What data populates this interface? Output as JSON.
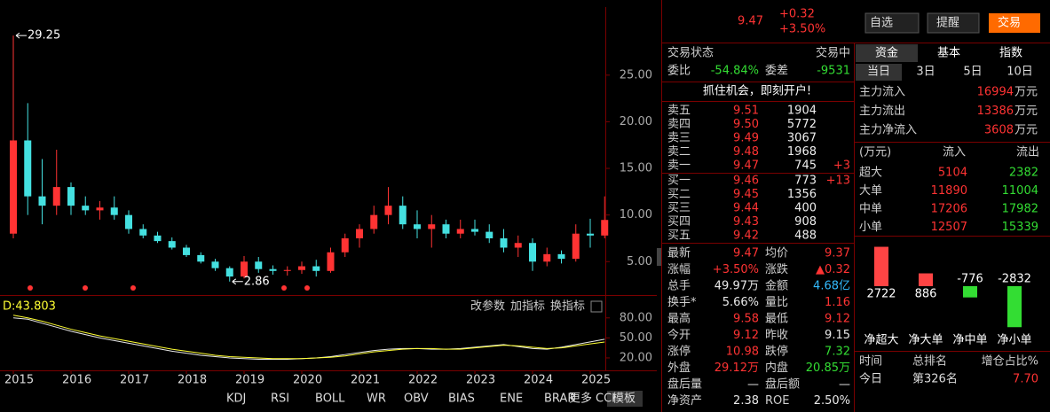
{
  "quote": {
    "price": "9.47",
    "change": "+0.32",
    "change_pct": "+3.50%"
  },
  "toolbar": {
    "watchlist": "自选",
    "alert": "提醒",
    "trade": "交易"
  },
  "kline": {
    "xlim": [
      2014.9,
      2025.4
    ],
    "ylim": [
      1.7,
      32.3
    ],
    "xticks": [
      2015,
      2016,
      2017,
      2018,
      2019,
      2020,
      2021,
      2022,
      2023,
      2024,
      2025
    ],
    "yticks": [
      {
        "value": 5,
        "label": "5.00"
      },
      {
        "value": 10,
        "label": "10.00"
      },
      {
        "value": 15,
        "label": "15.00"
      },
      {
        "value": 20,
        "label": "20.00"
      },
      {
        "value": 25,
        "label": "25.00"
      }
    ],
    "max_label": "29.25",
    "min_label": "2.86",
    "up_color": "#ff3333",
    "down_color": "#44e0e0",
    "candles": [
      {
        "x": 2015,
        "open": 8,
        "high": 29.25,
        "low": 7.5,
        "close": 18
      },
      {
        "x": 2015.25,
        "open": 18,
        "high": 22,
        "low": 10,
        "close": 12
      },
      {
        "x": 2015.5,
        "open": 12,
        "high": 16,
        "low": 9,
        "close": 11
      },
      {
        "x": 2015.75,
        "open": 11,
        "high": 17,
        "low": 10,
        "close": 13
      },
      {
        "x": 2016,
        "open": 13,
        "high": 13.5,
        "low": 10,
        "close": 11
      },
      {
        "x": 2016.25,
        "open": 11,
        "high": 12,
        "low": 10,
        "close": 10.5
      },
      {
        "x": 2016.5,
        "open": 10.5,
        "high": 11.5,
        "low": 9.5,
        "close": 10.8
      },
      {
        "x": 2016.75,
        "open": 10.8,
        "high": 12,
        "low": 9.5,
        "close": 10
      },
      {
        "x": 2017,
        "open": 10,
        "high": 10.5,
        "low": 8,
        "close": 8.5
      },
      {
        "x": 2017.25,
        "open": 8.5,
        "high": 9,
        "low": 7.5,
        "close": 7.8
      },
      {
        "x": 2017.5,
        "open": 7.8,
        "high": 8.2,
        "low": 7,
        "close": 7.2
      },
      {
        "x": 2017.75,
        "open": 7.2,
        "high": 7.6,
        "low": 6.3,
        "close": 6.5
      },
      {
        "x": 2018,
        "open": 6.5,
        "high": 6.8,
        "low": 5.5,
        "close": 5.7
      },
      {
        "x": 2018.25,
        "open": 5.7,
        "high": 6,
        "low": 4.8,
        "close": 5
      },
      {
        "x": 2018.5,
        "open": 5,
        "high": 5.3,
        "low": 4,
        "close": 4.3
      },
      {
        "x": 2018.75,
        "open": 4.3,
        "high": 4.5,
        "low": 2.86,
        "close": 3.4
      },
      {
        "x": 2019,
        "open": 3.4,
        "high": 5.6,
        "low": 3.2,
        "close": 5
      },
      {
        "x": 2019.25,
        "open": 5,
        "high": 5.5,
        "low": 3.8,
        "close": 4.2
      },
      {
        "x": 2019.5,
        "open": 4.2,
        "high": 4.6,
        "low": 3.6,
        "close": 4
      },
      {
        "x": 2019.75,
        "open": 4,
        "high": 4.5,
        "low": 3.5,
        "close": 4.1
      },
      {
        "x": 2020,
        "open": 4.1,
        "high": 5,
        "low": 3.7,
        "close": 4.5
      },
      {
        "x": 2020.25,
        "open": 4.5,
        "high": 5.2,
        "low": 3.4,
        "close": 4
      },
      {
        "x": 2020.5,
        "open": 4,
        "high": 6.5,
        "low": 3.8,
        "close": 6
      },
      {
        "x": 2020.75,
        "open": 6,
        "high": 8,
        "low": 5.5,
        "close": 7.5
      },
      {
        "x": 2021,
        "open": 7.5,
        "high": 9,
        "low": 6.5,
        "close": 8.5
      },
      {
        "x": 2021.25,
        "open": 8.5,
        "high": 11,
        "low": 8,
        "close": 10
      },
      {
        "x": 2021.5,
        "open": 10,
        "high": 13,
        "low": 9,
        "close": 11
      },
      {
        "x": 2021.75,
        "open": 11,
        "high": 12,
        "low": 8.5,
        "close": 9
      },
      {
        "x": 2022,
        "open": 9,
        "high": 10.5,
        "low": 7.5,
        "close": 8.5
      },
      {
        "x": 2022.25,
        "open": 8.5,
        "high": 10,
        "low": 6.5,
        "close": 9
      },
      {
        "x": 2022.5,
        "open": 9,
        "high": 9.5,
        "low": 7.5,
        "close": 8
      },
      {
        "x": 2022.75,
        "open": 8,
        "high": 9.5,
        "low": 7.5,
        "close": 8.5
      },
      {
        "x": 2023,
        "open": 8.5,
        "high": 9.5,
        "low": 7.8,
        "close": 8.2
      },
      {
        "x": 2023.25,
        "open": 8.2,
        "high": 9,
        "low": 7,
        "close": 7.5
      },
      {
        "x": 2023.5,
        "open": 7.5,
        "high": 8.5,
        "low": 6,
        "close": 6.5
      },
      {
        "x": 2023.75,
        "open": 6.5,
        "high": 7.8,
        "low": 5.5,
        "close": 7
      },
      {
        "x": 2024,
        "open": 7,
        "high": 7.5,
        "low": 4,
        "close": 5
      },
      {
        "x": 2024.25,
        "open": 5,
        "high": 6.5,
        "low": 4.5,
        "close": 5.8
      },
      {
        "x": 2024.5,
        "open": 5.8,
        "high": 6.2,
        "low": 4.8,
        "close": 5.3
      },
      {
        "x": 2024.75,
        "open": 5.3,
        "high": 9,
        "low": 5,
        "close": 8
      },
      {
        "x": 2025,
        "open": 8,
        "high": 9.6,
        "low": 6.5,
        "close": 7.8
      },
      {
        "x": 2025.25,
        "open": 7.8,
        "high": 12,
        "low": 7.5,
        "close": 9.47
      }
    ]
  },
  "indicator": {
    "label": "D:43.803",
    "ylim": [
      4,
      89
    ],
    "yticks": [
      {
        "value": 20,
        "label": "20.00"
      },
      {
        "value": 50,
        "label": "50.00"
      },
      {
        "value": 80,
        "label": "80.00"
      }
    ],
    "buttons": [
      "改参数",
      "加指标",
      "换指标"
    ],
    "series": [
      {
        "color": "#e8e8e8",
        "values": [
          80,
          78,
          72,
          66,
          60,
          55,
          50,
          46,
          42,
          38,
          34,
          30,
          27,
          24,
          22,
          20,
          19,
          18,
          18,
          18,
          19,
          20,
          22,
          25,
          28,
          31,
          33,
          34,
          34,
          33,
          33,
          34,
          36,
          38,
          40,
          37,
          34,
          33,
          36,
          40,
          44,
          48
        ]
      },
      {
        "color": "#ffff33",
        "values": [
          84,
          80,
          75,
          69,
          63,
          58,
          53,
          49,
          45,
          41,
          37,
          33,
          30,
          27,
          24,
          22,
          21,
          20,
          19,
          19,
          19,
          20,
          21,
          23,
          26,
          29,
          31,
          33,
          34,
          34,
          33,
          33,
          35,
          37,
          39,
          38,
          36,
          34,
          35,
          38,
          41,
          43.803
        ]
      }
    ]
  },
  "tabs": [
    "KDJ",
    "RSI",
    "BOLL",
    "WR",
    "OBV",
    "BIAS",
    "ENE",
    "BRAR",
    "CCI",
    "更多",
    "模板"
  ],
  "order_book": {
    "status_label": "交易状态",
    "status": "交易中",
    "ratio_label": "委比",
    "ratio": "-54.84%",
    "diff_label": "委差",
    "diff": "-9531",
    "banner": "抓住机会，即刻开户!",
    "asks": [
      {
        "label": "卖五",
        "price": "9.51",
        "volume": "1904"
      },
      {
        "label": "卖四",
        "price": "9.50",
        "volume": "5772"
      },
      {
        "label": "卖三",
        "price": "9.49",
        "volume": "3067"
      },
      {
        "label": "卖二",
        "price": "9.48",
        "volume": "1968"
      },
      {
        "label": "卖一",
        "price": "9.47",
        "volume": "745",
        "change": "+3"
      }
    ],
    "bids": [
      {
        "label": "买一",
        "price": "9.46",
        "volume": "773",
        "change": "+13"
      },
      {
        "label": "买二",
        "price": "9.45",
        "volume": "1356"
      },
      {
        "label": "买三",
        "price": "9.44",
        "volume": "400"
      },
      {
        "label": "买四",
        "price": "9.43",
        "volume": "908"
      },
      {
        "label": "买五",
        "price": "9.42",
        "volume": "488"
      }
    ]
  },
  "stats": [
    [
      {
        "label": "最新",
        "value": "9.47",
        "color": "#ff3333"
      },
      {
        "label": "均价",
        "value": "9.37",
        "color": "#ff3333"
      }
    ],
    [
      {
        "label": "涨幅",
        "value": "+3.50%",
        "color": "#ff3333"
      },
      {
        "label": "涨跌",
        "value": "▲0.32",
        "color": "#ff3333"
      }
    ],
    [
      {
        "label": "总手",
        "value": "49.97万",
        "color": "#e8e8e8"
      },
      {
        "label": "金额",
        "value": "4.68亿",
        "color": "#33bbff"
      }
    ],
    [
      {
        "label": "换手*",
        "value": "5.66%",
        "color": "#e8e8e8"
      },
      {
        "label": "量比",
        "value": "1.16",
        "color": "#ff3333"
      }
    ],
    [
      {
        "label": "最高",
        "value": "9.58",
        "color": "#ff3333"
      },
      {
        "label": "最低",
        "value": "9.12",
        "color": "#ff3333"
      }
    ],
    [
      {
        "label": "今开",
        "value": "9.12",
        "color": "#ff3333"
      },
      {
        "label": "昨收",
        "value": "9.15",
        "color": "#e8e8e8"
      }
    ],
    [
      {
        "label": "涨停",
        "value": "10.98",
        "color": "#ff3333"
      },
      {
        "label": "跌停",
        "value": "7.32",
        "color": "#33dd33"
      }
    ],
    [
      {
        "label": "外盘",
        "value": "29.12万",
        "color": "#ff3333"
      },
      {
        "label": "内盘",
        "value": "20.85万",
        "color": "#33dd33"
      }
    ],
    [
      {
        "label": "盘后量",
        "value": "—",
        "color": "#e8e8e8"
      },
      {
        "label": "盘后额",
        "value": "—",
        "color": "#e8e8e8"
      }
    ],
    [
      {
        "label": "净资产",
        "value": "2.38",
        "color": "#e8e8e8"
      },
      {
        "label": "ROE",
        "value": "2.50%",
        "color": "#e8e8e8"
      }
    ]
  ],
  "fund_flow": {
    "tabs": [
      "资金",
      "基本",
      "指数"
    ],
    "periods": [
      "当日",
      "3日",
      "5日",
      "10日"
    ],
    "main": [
      {
        "label": "主力流入",
        "value": "16994",
        "unit": "万元"
      },
      {
        "label": "主力流出",
        "value": "13386",
        "unit": "万元"
      },
      {
        "label": "主力净流入",
        "value": "3608",
        "unit": "万元"
      }
    ],
    "header": [
      "(万元)",
      "流入",
      "流出"
    ],
    "rows": [
      {
        "label": "超大",
        "inflow": "5104",
        "outflow": "2382"
      },
      {
        "label": "大单",
        "inflow": "11890",
        "outflow": "11004"
      },
      {
        "label": "中单",
        "inflow": "17206",
        "outflow": "17982"
      },
      {
        "label": "小单",
        "inflow": "12507",
        "outflow": "15339"
      }
    ],
    "net": {
      "ylim": [
        -3000,
        3000
      ],
      "up_color": "#ff4444",
      "down_color": "#33dd33",
      "bars": [
        {
          "label": "净超大",
          "value": 2722
        },
        {
          "label": "净大单",
          "value": 886
        },
        {
          "label": "净中单",
          "value": -776
        },
        {
          "label": "净小单",
          "value": -2832
        }
      ]
    },
    "rank_header": [
      "时间",
      "总排名",
      "增仓占比%"
    ],
    "rank_row": [
      "今日",
      "第326名",
      "7.70"
    ]
  }
}
